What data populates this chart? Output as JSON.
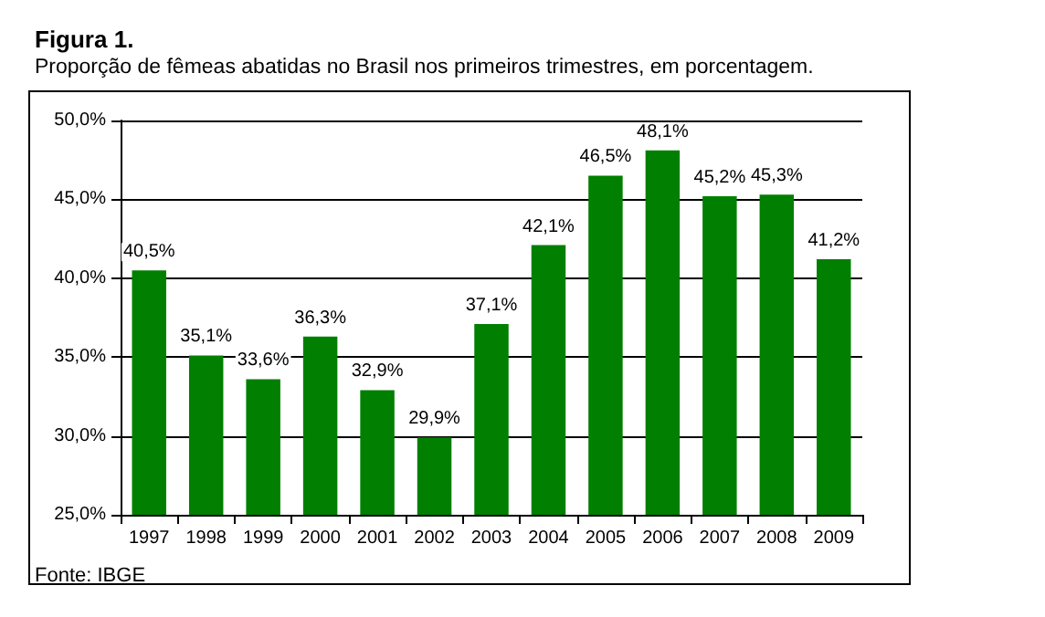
{
  "chart_data": {
    "type": "bar",
    "title": "Figura 1.",
    "subtitle": "Proporção de fêmeas abatidas no Brasil nos primeiros trimestres, em porcentagem.",
    "categories": [
      "1997",
      "1998",
      "1999",
      "2000",
      "2001",
      "2002",
      "2003",
      "2004",
      "2005",
      "2006",
      "2007",
      "2008",
      "2009"
    ],
    "values": [
      40.5,
      35.1,
      33.6,
      36.3,
      32.9,
      29.9,
      37.1,
      42.1,
      46.5,
      48.1,
      45.2,
      45.3,
      41.2
    ],
    "value_labels": [
      "40,5%",
      "35,1%",
      "33,6%",
      "36,3%",
      "32,9%",
      "29,9%",
      "37,1%",
      "42,1%",
      "46,5%",
      "48,1%",
      "45,2%",
      "45,3%",
      "41,2%"
    ],
    "color": "#007f00",
    "ylim": [
      25,
      50
    ],
    "yticks": [
      {
        "value": 25,
        "label": "25,0%"
      },
      {
        "value": 30,
        "label": "30,0%"
      },
      {
        "value": 35,
        "label": "35,0%"
      },
      {
        "value": 40,
        "label": "40,0%"
      },
      {
        "value": 45,
        "label": "45,0%"
      },
      {
        "value": 50,
        "label": "50,0%"
      }
    ],
    "grid": "y",
    "annotations": [
      "Fonte: IBGE"
    ]
  }
}
